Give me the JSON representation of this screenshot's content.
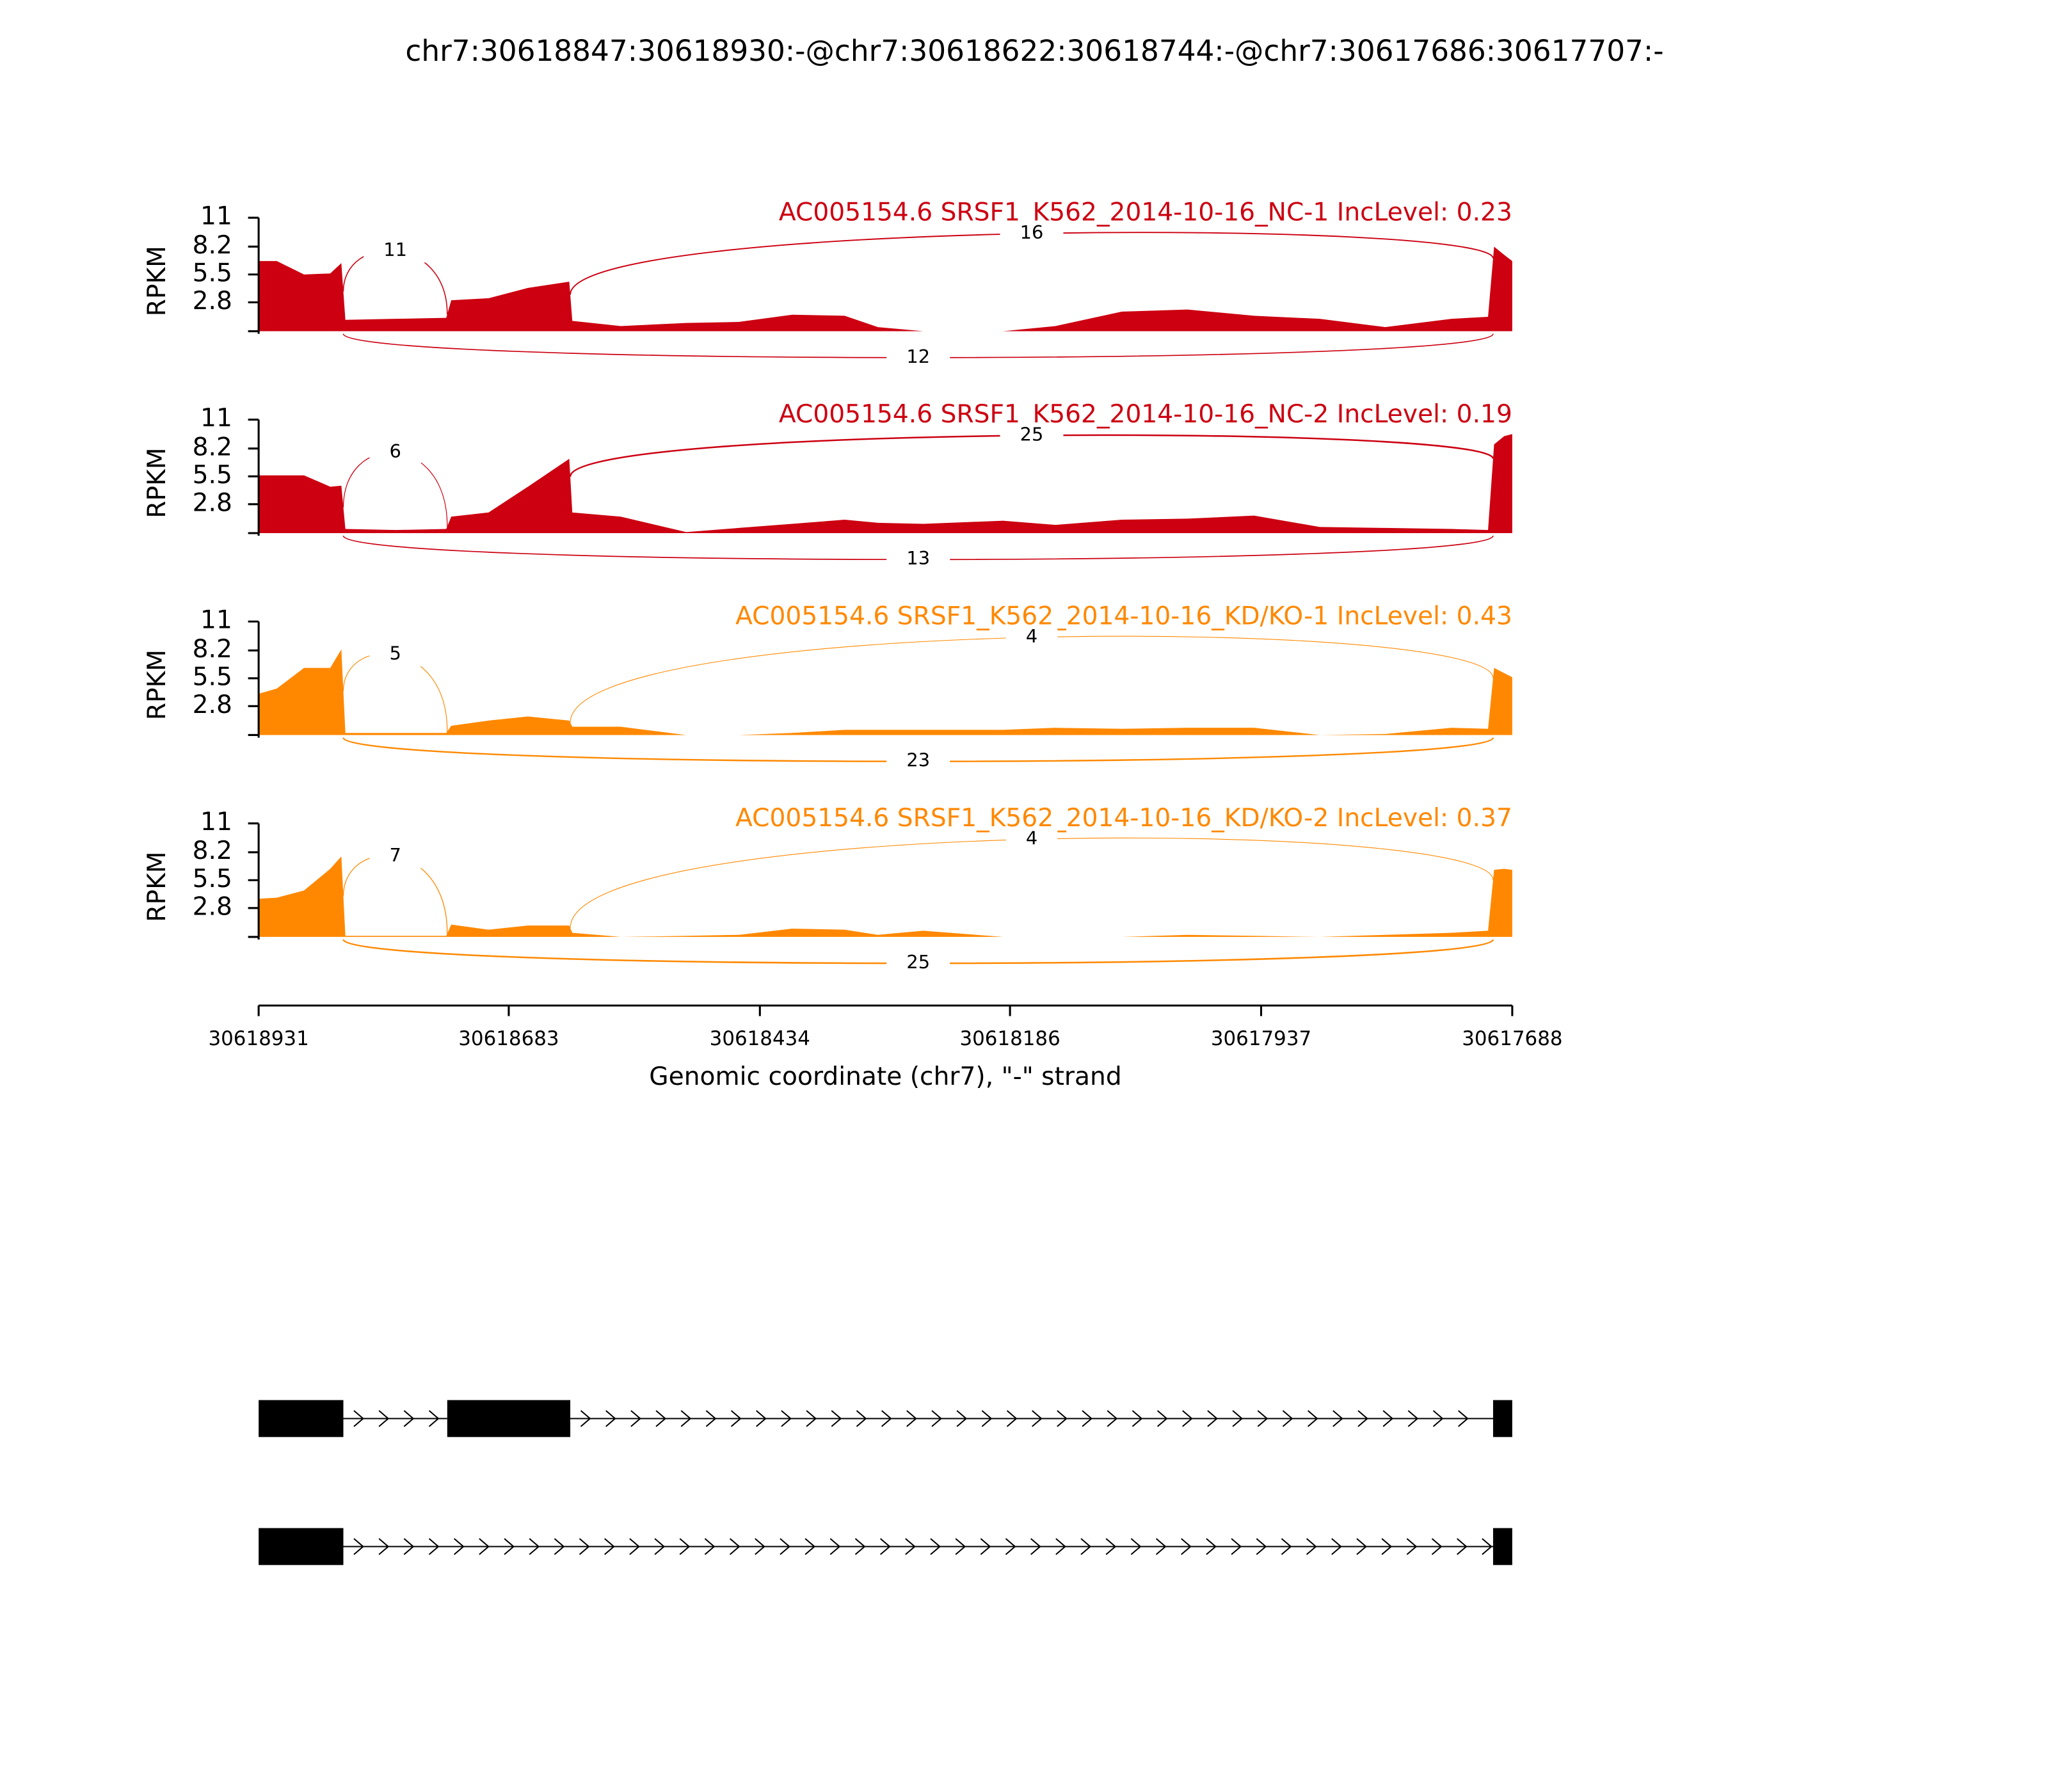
{
  "chart_data": {
    "type": "sashimi",
    "title": "chr7:30618847:30618930:-@chr7:30618622:30618744:-@chr7:30617686:30617707:-",
    "xlabel": "Genomic coordinate (chr7), \"-\" strand",
    "ylabel": "RPKM",
    "xlim": [
      30618931,
      30617688
    ],
    "xticks": [
      30618931,
      30618683,
      30618434,
      30618186,
      30617937,
      30617688
    ],
    "ylim": [
      0,
      11
    ],
    "yticks": [
      2.8,
      5.5,
      8.2,
      11
    ],
    "x": [
      30618931,
      30618913,
      30618886,
      30618860,
      30618849,
      30618845,
      30618795,
      30618745,
      30618740,
      30618703,
      30618664,
      30618623,
      30618620,
      30618572,
      30618507,
      30618455,
      30618402,
      30618350,
      30618317,
      30618272,
      30618193,
      30618141,
      30618075,
      30618010,
      30617944,
      30617879,
      30617814,
      30617748,
      30617712,
      30617706,
      30617696,
      30617688
    ],
    "junctions": [
      {
        "start": 30618847,
        "end": 30618744
      },
      {
        "start": 30618622,
        "end": 30617707
      },
      {
        "start": 30618847,
        "end": 30617707
      }
    ],
    "series": [
      {
        "name": "AC005154.6 SRSF1_K562_2014-10-16_NC-1 IncLevel: 0.23",
        "color": "#cc0011",
        "values": [
          6.8,
          6.8,
          5.5,
          5.6,
          6.6,
          1.1,
          1.2,
          1.3,
          3.0,
          3.2,
          4.2,
          4.8,
          1.0,
          0.5,
          0.8,
          0.9,
          1.6,
          1.5,
          0.4,
          0,
          0,
          0.5,
          1.9,
          2.1,
          1.5,
          1.2,
          0.4,
          1.2,
          1.4,
          8.2,
          7.4,
          6.8
        ],
        "junction_counts": [
          11,
          16,
          12
        ]
      },
      {
        "name": "AC005154.6 SRSF1_K562_2014-10-16_NC-2 IncLevel: 0.19",
        "color": "#cc0011",
        "values": [
          5.6,
          5.6,
          5.6,
          4.5,
          4.6,
          0.4,
          0.3,
          0.4,
          1.6,
          2.0,
          4.5,
          7.2,
          2.0,
          1.6,
          0.1,
          0.5,
          0.9,
          1.3,
          1.0,
          0.9,
          1.2,
          0.8,
          1.3,
          1.4,
          1.7,
          0.6,
          0.5,
          0.4,
          0.3,
          8.6,
          9.4,
          9.6
        ],
        "junction_counts": [
          6,
          25,
          13
        ]
      },
      {
        "name": "AC005154.6 SRSF1_K562_2014-10-16_KD/KO-1 IncLevel: 0.43",
        "color": "#ff8800",
        "values": [
          4.0,
          4.5,
          6.5,
          6.5,
          8.3,
          0.2,
          0.2,
          0.2,
          0.9,
          1.4,
          1.8,
          1.4,
          0.8,
          0.8,
          0,
          0,
          0.2,
          0.5,
          0.5,
          0.5,
          0.5,
          0.7,
          0.6,
          0.7,
          0.7,
          0,
          0.1,
          0.7,
          0.6,
          6.5,
          6.0,
          5.6
        ],
        "junction_counts": [
          5,
          4,
          23
        ]
      },
      {
        "name": "AC005154.6 SRSF1_K562_2014-10-16_KD/KO-2 IncLevel: 0.37",
        "color": "#ff8800",
        "values": [
          3.7,
          3.8,
          4.5,
          6.6,
          7.8,
          0.1,
          0.1,
          0.1,
          1.2,
          0.7,
          1.1,
          1.1,
          0.4,
          0,
          0.1,
          0.2,
          0.8,
          0.7,
          0.2,
          0.6,
          0,
          0,
          0,
          0.2,
          0.1,
          0,
          0.2,
          0.4,
          0.6,
          6.5,
          6.6,
          6.5
        ],
        "junction_counts": [
          7,
          4,
          25
        ]
      }
    ],
    "isoforms": [
      {
        "exons": [
          [
            30618931,
            30618847
          ],
          [
            30618744,
            30618622
          ],
          [
            30617707,
            30617688
          ]
        ]
      },
      {
        "exons": [
          [
            30618931,
            30618847
          ],
          [
            30617707,
            30617688
          ]
        ]
      }
    ]
  }
}
